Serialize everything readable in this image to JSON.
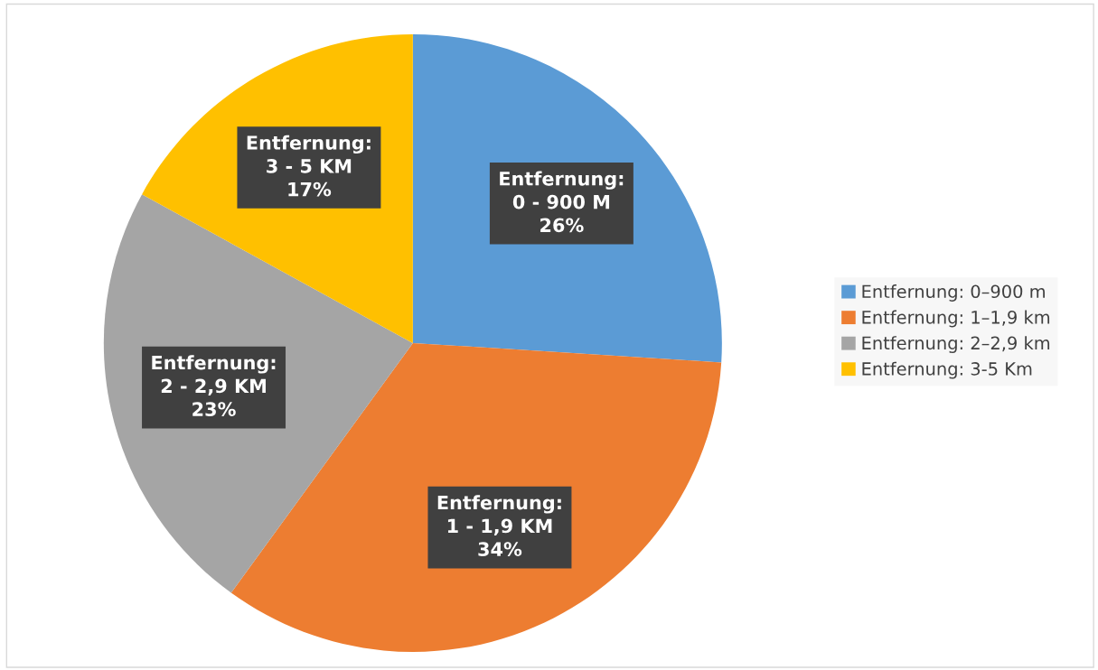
{
  "chart_data": {
    "type": "pie",
    "categories": [
      "Entfernung: 0–900 m",
      "Entfernung: 1–1,9 km",
      "Entfernung: 2–2,9 km",
      "Entfernung: 3-5 Km"
    ],
    "values": [
      26,
      34,
      23,
      17
    ],
    "colors": [
      "#5b9bd5",
      "#ed7d31",
      "#a5a5a5",
      "#ffc000"
    ],
    "value_labels": [
      "Entfernung:\n0 - 900 M\n26%",
      "Entfernung:\n1 - 1,9 KM\n34%",
      "Entfernung:\n2 - 2,9 KM\n23%",
      "Entfernung:\n3 - 5 KM\n17%"
    ],
    "legend": "right"
  }
}
